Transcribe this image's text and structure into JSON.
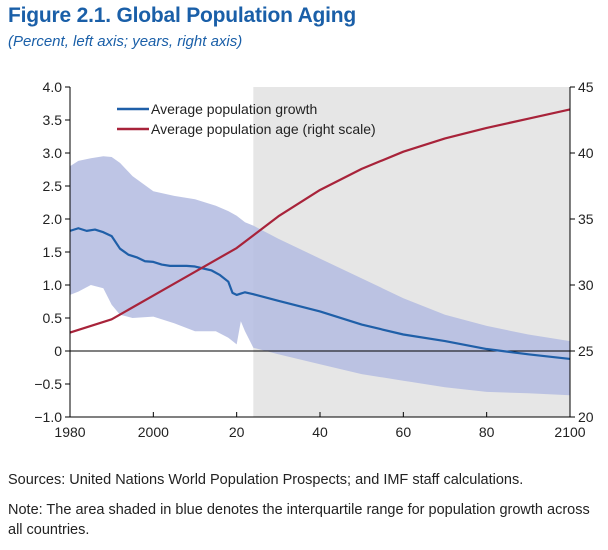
{
  "figure": {
    "title": "Figure 2.1.  Global Population Aging",
    "subtitle": "(Percent, left axis; years, right axis)",
    "sources": "Sources: United Nations World Population Prospects; and IMF staff calculations.",
    "note": "Note: The area shaded in blue denotes the interquartile range for population growth across all countries."
  },
  "colors": {
    "growth": "#1f5fa8",
    "age": "#a8233a",
    "band": "#b3bbe0",
    "shade": "#e6e6e6"
  },
  "chart_data": {
    "type": "line",
    "title": "Figure 2.1.  Global Population Aging",
    "subtitle": "(Percent, left axis; years, right axis)",
    "x_ticks": [
      1980,
      2000,
      2020,
      2040,
      2060,
      2080,
      2100
    ],
    "x_tick_labels": [
      "1980",
      "2000",
      "20",
      "40",
      "60",
      "80",
      "2100"
    ],
    "xlim": [
      1980,
      2100
    ],
    "ylim_left": [
      -1.0,
      4.0
    ],
    "y_ticks_left": [
      -1.0,
      -0.5,
      0,
      0.5,
      1.0,
      1.5,
      2.0,
      2.5,
      3.0,
      3.5,
      4.0
    ],
    "y_tick_labels_left": [
      "−1.0",
      "−0.5",
      "0",
      "0.5",
      "1.0",
      "1.5",
      "2.0",
      "2.5",
      "3.0",
      "3.5",
      "4.0"
    ],
    "ylim_right": [
      20,
      45
    ],
    "y_ticks_right": [
      20,
      25,
      30,
      35,
      40,
      45
    ],
    "y_tick_labels_right": [
      "20",
      "25",
      "30",
      "35",
      "40",
      "45"
    ],
    "shaded_region": [
      2024,
      2100
    ],
    "legend_placement": "top-left",
    "series": [
      {
        "name": "Average population growth",
        "axis": "left",
        "x": [
          1980,
          1982,
          1984,
          1986,
          1988,
          1990,
          1992,
          1994,
          1996,
          1998,
          2000,
          2002,
          2004,
          2006,
          2008,
          2010,
          2012,
          2014,
          2016,
          2018,
          2019,
          2020,
          2021,
          2022,
          2024,
          2030,
          2040,
          2050,
          2060,
          2070,
          2080,
          2090,
          2100
        ],
        "y": [
          1.82,
          1.86,
          1.82,
          1.84,
          1.8,
          1.74,
          1.55,
          1.46,
          1.42,
          1.36,
          1.35,
          1.31,
          1.29,
          1.29,
          1.29,
          1.28,
          1.25,
          1.22,
          1.15,
          1.05,
          0.88,
          0.85,
          0.87,
          0.89,
          0.86,
          0.76,
          0.6,
          0.4,
          0.25,
          0.15,
          0.03,
          -0.05,
          -0.12
        ]
      },
      {
        "name": "Average population age (right scale)",
        "axis": "right",
        "x": [
          1980,
          1990,
          2000,
          2010,
          2020,
          2030,
          2040,
          2050,
          2060,
          2070,
          2080,
          2090,
          2100
        ],
        "y": [
          26.4,
          27.4,
          29.2,
          31.0,
          32.8,
          35.2,
          37.2,
          38.8,
          40.1,
          41.1,
          41.9,
          42.6,
          43.3
        ]
      },
      {
        "name": "Interquartile range",
        "axis": "left",
        "x": [
          1980,
          1982,
          1985,
          1988,
          1990,
          1992,
          1995,
          2000,
          2005,
          2010,
          2015,
          2018,
          2020,
          2021,
          2022,
          2024,
          2030,
          2040,
          2050,
          2060,
          2070,
          2080,
          2090,
          2100
        ],
        "upper": [
          2.8,
          2.88,
          2.92,
          2.95,
          2.94,
          2.85,
          2.65,
          2.42,
          2.35,
          2.3,
          2.2,
          2.12,
          2.05,
          2.0,
          1.95,
          1.9,
          1.7,
          1.4,
          1.1,
          0.8,
          0.55,
          0.38,
          0.25,
          0.15
        ],
        "lower": [
          0.85,
          0.9,
          1.0,
          0.95,
          0.7,
          0.55,
          0.5,
          0.52,
          0.42,
          0.3,
          0.3,
          0.2,
          0.1,
          0.45,
          0.3,
          0.05,
          -0.05,
          -0.2,
          -0.35,
          -0.45,
          -0.55,
          -0.62,
          -0.64,
          -0.67
        ]
      }
    ]
  }
}
